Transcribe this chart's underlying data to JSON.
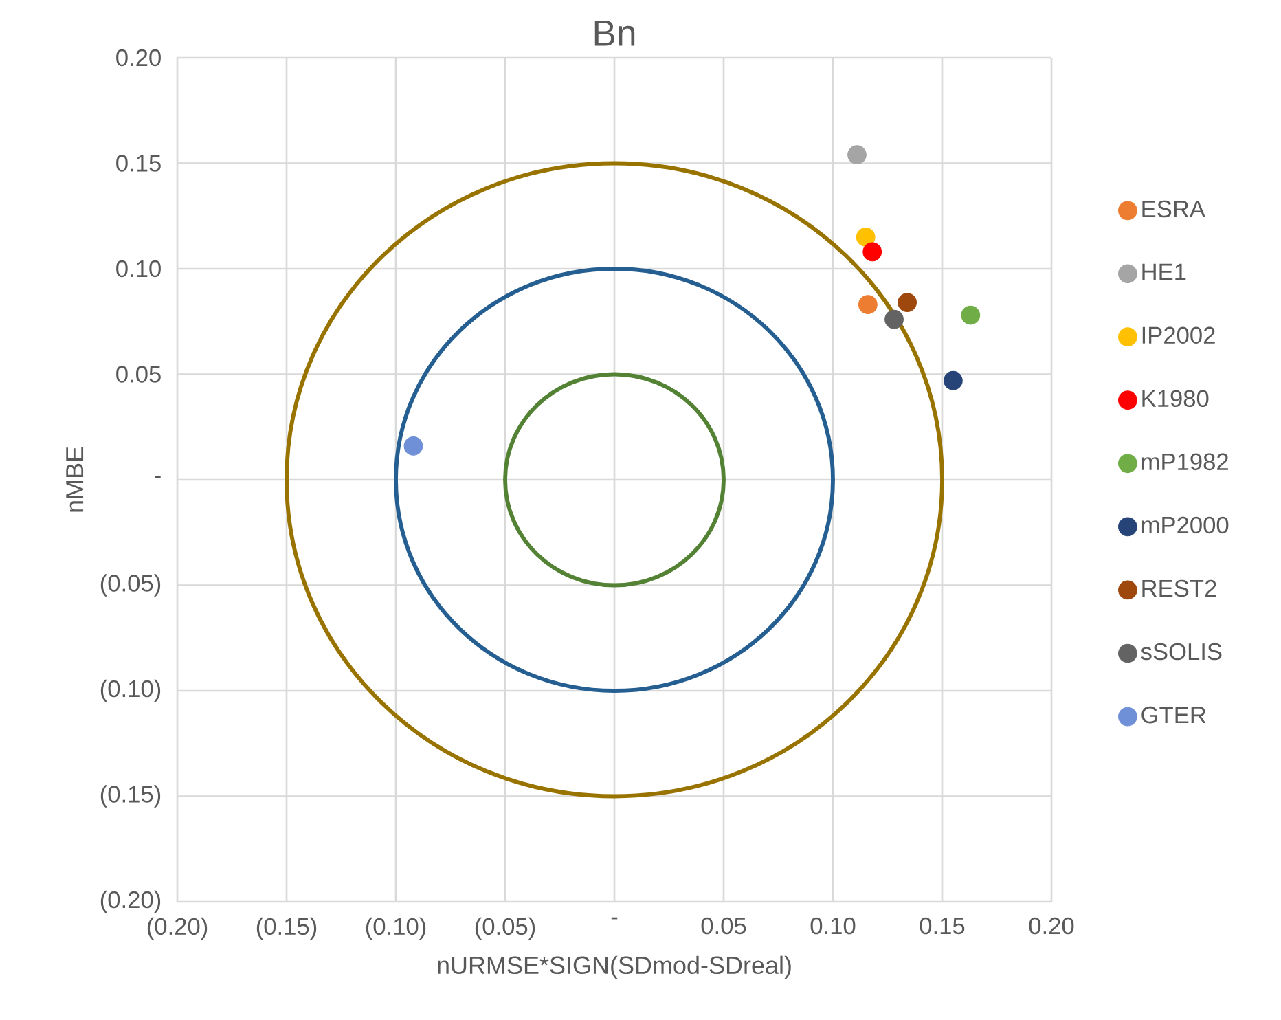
{
  "chart_data": {
    "type": "scatter",
    "title": "Bn",
    "xlabel": "nURMSE*SIGN(SDmod-SDreal)",
    "ylabel": "nMBE",
    "xlim": [
      -0.2,
      0.2
    ],
    "ylim": [
      -0.2,
      0.2
    ],
    "xticks": [
      {
        "value": -0.2,
        "label": "(0.20)"
      },
      {
        "value": -0.15,
        "label": "(0.15)"
      },
      {
        "value": -0.1,
        "label": "(0.10)"
      },
      {
        "value": -0.05,
        "label": "(0.05)"
      },
      {
        "value": 0,
        "label": "-"
      },
      {
        "value": 0.05,
        "label": "0.05"
      },
      {
        "value": 0.1,
        "label": "0.10"
      },
      {
        "value": 0.15,
        "label": "0.15"
      },
      {
        "value": 0.2,
        "label": "0.20"
      }
    ],
    "yticks": [
      {
        "value": -0.2,
        "label": "(0.20)"
      },
      {
        "value": -0.15,
        "label": "(0.15)"
      },
      {
        "value": -0.1,
        "label": "(0.10)"
      },
      {
        "value": -0.05,
        "label": "(0.05)"
      },
      {
        "value": 0,
        "label": "-"
      },
      {
        "value": 0.05,
        "label": "0.05"
      },
      {
        "value": 0.1,
        "label": "0.10"
      },
      {
        "value": 0.15,
        "label": "0.15"
      },
      {
        "value": 0.2,
        "label": "0.20"
      }
    ],
    "grid": true,
    "legend": "right",
    "marker": "circle",
    "series": [
      {
        "name": "ESRA",
        "color": "#ed7d31",
        "x": [
          0.116
        ],
        "values": [
          0.083
        ]
      },
      {
        "name": "HE1",
        "color": "#a5a5a5",
        "x": [
          0.111
        ],
        "values": [
          0.154
        ]
      },
      {
        "name": "IP2002",
        "color": "#ffc000",
        "x": [
          0.115
        ],
        "values": [
          0.115
        ]
      },
      {
        "name": "K1980",
        "color": "#ff0000",
        "x": [
          0.118
        ],
        "values": [
          0.108
        ]
      },
      {
        "name": "mP1982",
        "color": "#70ad47",
        "x": [
          0.163
        ],
        "values": [
          0.078
        ]
      },
      {
        "name": "mP2000",
        "color": "#264478",
        "x": [
          0.155
        ],
        "values": [
          0.047
        ]
      },
      {
        "name": "REST2",
        "color": "#9e480e",
        "x": [
          0.134
        ],
        "values": [
          0.084
        ]
      },
      {
        "name": "sSOLIS",
        "color": "#636363",
        "x": [
          0.128
        ],
        "values": [
          0.076
        ]
      },
      {
        "name": "GTER",
        "color": "#6f8fd6",
        "x": [
          -0.092
        ],
        "values": [
          0.016
        ]
      }
    ]
  }
}
